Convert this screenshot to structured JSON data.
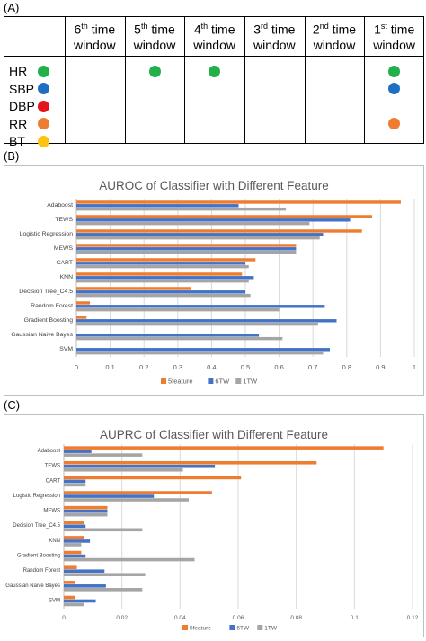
{
  "panel_a": {
    "label": "(A)",
    "columns": [
      {
        "ord": "6",
        "sup": "th",
        "word": "time",
        "line2": "window"
      },
      {
        "ord": "5",
        "sup": "th",
        "word": "time",
        "line2": "window"
      },
      {
        "ord": "4",
        "sup": "th",
        "word": "time",
        "line2": "window"
      },
      {
        "ord": "3",
        "sup": "rd",
        "word": "time",
        "line2": "window"
      },
      {
        "ord": "2",
        "sup": "nd",
        "word": "time",
        "line2": "window"
      },
      {
        "ord": "1",
        "sup": "st",
        "word": "time",
        "line2": "window"
      }
    ],
    "variables": [
      {
        "name": "HR",
        "color": "#22b04a"
      },
      {
        "name": "SBP",
        "color": "#1e6fc2"
      },
      {
        "name": "DBP",
        "color": "#e4141b"
      },
      {
        "name": "RR",
        "color": "#ee7d31"
      },
      {
        "name": "BT",
        "color": "#ffc20e"
      }
    ],
    "marks": [
      {
        "variable": 0,
        "column": 1
      },
      {
        "variable": 0,
        "column": 2
      },
      {
        "variable": 0,
        "column": 5
      },
      {
        "variable": 1,
        "column": 5
      },
      {
        "variable": 3,
        "column": 5
      }
    ]
  },
  "chart_data": [
    {
      "panel": "(B)",
      "type": "bar",
      "orientation": "horizontal",
      "title": "AUROC of Classifier with Different Feature",
      "categories": [
        "Adaboost",
        "TEWS",
        "Logistic Regression",
        "MEWS",
        "CART",
        "KNN",
        "Decision Tree_C4.5",
        "Random Forest",
        "Gradient Boosting",
        "Gaussian Naive Bayes",
        "SVM"
      ],
      "series": [
        {
          "name": "5feature",
          "color": "#ed7d31",
          "values": [
            0.96,
            0.875,
            0.845,
            0.65,
            0.53,
            0.49,
            0.34,
            0.04,
            0.03,
            0.0,
            0.0
          ]
        },
        {
          "name": "6TW",
          "color": "#4472c4",
          "values": [
            0.48,
            0.81,
            0.73,
            0.65,
            0.5,
            0.525,
            0.5,
            0.735,
            0.77,
            0.54,
            0.75
          ]
        },
        {
          "name": "1TW",
          "color": "#a5a5a5",
          "values": [
            0.62,
            0.69,
            0.72,
            0.65,
            0.51,
            0.51,
            0.515,
            0.6,
            0.715,
            0.61,
            0.73
          ]
        }
      ],
      "xlim": [
        0,
        1
      ],
      "xticks": [
        "0",
        "0.1",
        "0.2",
        "0.3",
        "0.4",
        "0.5",
        "0.6",
        "0.7",
        "0.8",
        "0.9",
        "1"
      ],
      "grid": true,
      "legend": "bottom"
    },
    {
      "panel": "(C)",
      "type": "bar",
      "orientation": "horizontal",
      "title": "AUPRC of Classifier with Different Feature",
      "categories": [
        "Adaboost",
        "TEWS",
        "CART",
        "Logistic Regression",
        "MEWS",
        "Decision Tree_C4.5",
        "KNN",
        "Gradient Boosting",
        "Random Forest",
        "Gaussian Naive Bayes",
        "SVM"
      ],
      "series": [
        {
          "name": "5feature",
          "color": "#ed7d31",
          "values": [
            0.11,
            0.087,
            0.061,
            0.051,
            0.015,
            0.007,
            0.007,
            0.006,
            0.0045,
            0.004,
            0.004
          ]
        },
        {
          "name": "6TW",
          "color": "#4472c4",
          "values": [
            0.0095,
            0.052,
            0.0075,
            0.031,
            0.015,
            0.0075,
            0.009,
            0.0075,
            0.014,
            0.0145,
            0.011
          ]
        },
        {
          "name": "1TW",
          "color": "#a5a5a5",
          "values": [
            0.027,
            0.041,
            0.0075,
            0.043,
            0.015,
            0.027,
            0.006,
            0.045,
            0.028,
            0.027,
            0.007
          ]
        }
      ],
      "xlim": [
        0,
        0.12
      ],
      "xticks": [
        "0",
        "0.02",
        "0.04",
        "0.06",
        "0.08",
        "0.1",
        "0.12"
      ],
      "grid": true,
      "legend": "bottom"
    }
  ]
}
